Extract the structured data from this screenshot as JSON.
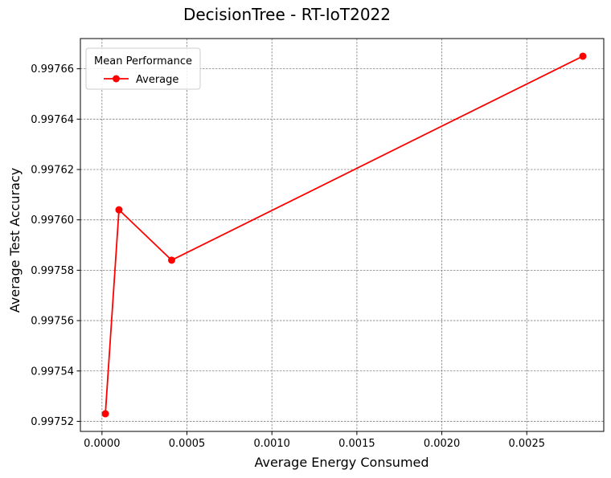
{
  "chart_data": {
    "type": "line",
    "title": "DecisionTree - RT-IoT2022",
    "xlabel": "Average Energy Consumed",
    "ylabel": "Average Test Accuracy",
    "xlim": [
      -0.000127,
      0.002953
    ],
    "ylim": [
      0.997516,
      0.997672
    ],
    "xticks": [
      0.0,
      0.0005,
      0.001,
      0.0015,
      0.002,
      0.0025
    ],
    "xtick_labels": [
      "0.0000",
      "0.0005",
      "0.0010",
      "0.0015",
      "0.0020",
      "0.0025"
    ],
    "yticks": [
      0.99752,
      0.99754,
      0.99756,
      0.99758,
      0.9976,
      0.99762,
      0.99764,
      0.99766
    ],
    "ytick_labels": [
      "0.99752",
      "0.99754",
      "0.99756",
      "0.99758",
      "0.99760",
      "0.99762",
      "0.99764",
      "0.99766"
    ],
    "grid": true,
    "legend": {
      "title": "Mean Performance",
      "placement": "top-left"
    },
    "series": [
      {
        "name": "Average",
        "color": "#ff0000",
        "marker": "circle",
        "x": [
          2e-05,
          0.0001,
          0.00041,
          0.00283
        ],
        "y": [
          0.997523,
          0.997604,
          0.997584,
          0.997665
        ]
      }
    ]
  }
}
